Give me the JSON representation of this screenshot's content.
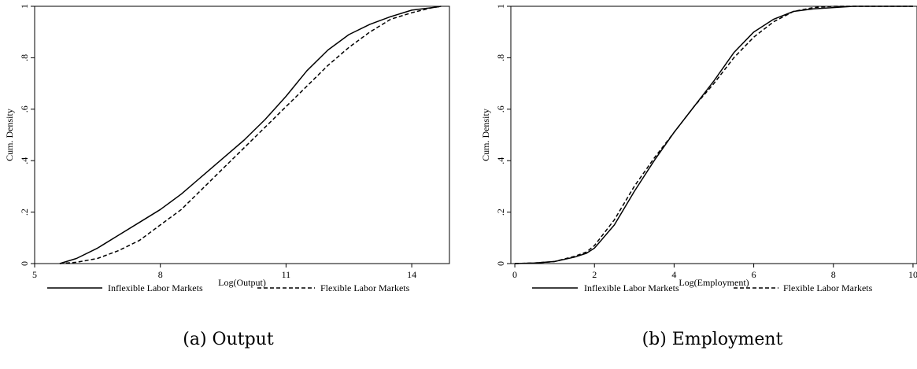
{
  "chart_data": [
    {
      "type": "line",
      "caption": "(a) Output",
      "xlabel": "Log(Output)",
      "ylabel": "Cum. Density",
      "xlim": [
        5,
        14.9
      ],
      "ylim": [
        0,
        1
      ],
      "xticks": [
        5,
        8,
        11,
        14
      ],
      "xtick_labels": [
        "5",
        "8",
        "11",
        "14"
      ],
      "yticks": [
        0,
        0.2,
        0.4,
        0.6,
        0.8,
        1
      ],
      "ytick_labels": [
        "0",
        ".2",
        ".4",
        ".6",
        ".8",
        "1"
      ],
      "grid": false,
      "legend_position": "bottom",
      "series": [
        {
          "name": "Inflexible Labor Markets",
          "style": "solid",
          "x": [
            5.6,
            6.0,
            6.5,
            7.0,
            7.5,
            8.0,
            8.5,
            9.0,
            9.5,
            10.0,
            10.5,
            11.0,
            11.5,
            12.0,
            12.5,
            13.0,
            13.5,
            14.0,
            14.5,
            14.7
          ],
          "y": [
            0.0,
            0.02,
            0.06,
            0.11,
            0.16,
            0.21,
            0.27,
            0.34,
            0.41,
            0.48,
            0.56,
            0.65,
            0.75,
            0.83,
            0.89,
            0.93,
            0.96,
            0.985,
            0.995,
            1.0
          ]
        },
        {
          "name": "Flexible Labor Markets",
          "style": "dashed",
          "x": [
            5.6,
            6.0,
            6.5,
            7.0,
            7.5,
            8.0,
            8.5,
            9.0,
            9.5,
            10.0,
            10.5,
            11.0,
            11.5,
            12.0,
            12.5,
            13.0,
            13.5,
            14.0,
            14.5,
            14.7
          ],
          "y": [
            0.0,
            0.005,
            0.02,
            0.05,
            0.09,
            0.15,
            0.21,
            0.29,
            0.37,
            0.45,
            0.53,
            0.61,
            0.69,
            0.77,
            0.84,
            0.9,
            0.95,
            0.975,
            0.995,
            1.0
          ]
        }
      ]
    },
    {
      "type": "line",
      "caption": "(b) Employment",
      "xlabel": "Log(Employment)",
      "ylabel": "Cum. Density",
      "xlim": [
        -0.1,
        10.1
      ],
      "ylim": [
        0,
        1
      ],
      "xticks": [
        0,
        2,
        4,
        6,
        8,
        10
      ],
      "xtick_labels": [
        "0",
        "2",
        "4",
        "6",
        "8",
        "10"
      ],
      "yticks": [
        0,
        0.2,
        0.4,
        0.6,
        0.8,
        1
      ],
      "ytick_labels": [
        "0",
        ".2",
        ".4",
        ".6",
        ".8",
        "1"
      ],
      "grid": false,
      "legend_position": "bottom",
      "series": [
        {
          "name": "Inflexible Labor Markets",
          "style": "solid",
          "x": [
            0,
            0.5,
            1.0,
            1.5,
            1.8,
            2.0,
            2.5,
            3.0,
            3.5,
            4.0,
            4.5,
            5.0,
            5.5,
            6.0,
            6.5,
            7.0,
            7.5,
            8.0,
            8.5,
            10.0
          ],
          "y": [
            0.0,
            0.002,
            0.008,
            0.025,
            0.04,
            0.06,
            0.15,
            0.28,
            0.4,
            0.51,
            0.61,
            0.71,
            0.82,
            0.9,
            0.95,
            0.98,
            0.99,
            0.995,
            1.0,
            1.0
          ]
        },
        {
          "name": "Flexible Labor Markets",
          "style": "dashed",
          "x": [
            0,
            0.5,
            1.0,
            1.5,
            1.8,
            2.0,
            2.5,
            3.0,
            3.5,
            4.0,
            4.5,
            5.0,
            5.5,
            6.0,
            6.5,
            7.0,
            7.5,
            8.0,
            8.5,
            10.0
          ],
          "y": [
            0.0,
            0.002,
            0.008,
            0.028,
            0.045,
            0.07,
            0.17,
            0.3,
            0.41,
            0.51,
            0.61,
            0.7,
            0.8,
            0.88,
            0.94,
            0.98,
            0.995,
            1.0,
            1.0,
            1.0
          ]
        }
      ]
    }
  ]
}
